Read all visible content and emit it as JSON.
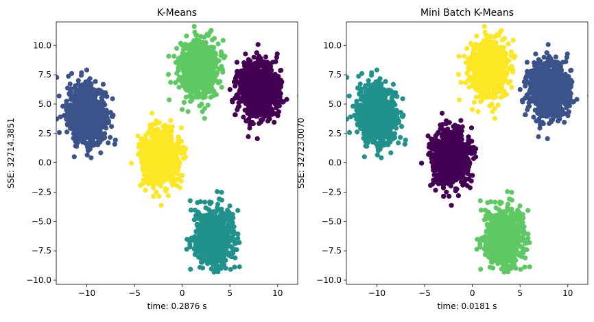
{
  "chart_data": [
    {
      "type": "scatter",
      "title": "K-Means",
      "xlabel": "time: 0.2876 s",
      "ylabel": "SSE: 32714.3851",
      "xlim": [
        -13.2,
        12.1
      ],
      "ylim": [
        -10.35,
        12.0
      ],
      "xticks": [
        -10,
        -5,
        0,
        5,
        10
      ],
      "xtick_labels": [
        "−10",
        "−5",
        "0",
        "5",
        "10"
      ],
      "yticks": [
        -10.0,
        -7.5,
        -5.0,
        -2.5,
        0.0,
        2.5,
        5.0,
        7.5,
        10.0
      ],
      "ytick_labels": [
        "−10.0",
        "−7.5",
        "−5.0",
        "−2.5",
        "0.0",
        "2.5",
        "5.0",
        "7.5",
        "10.0"
      ],
      "grid": false,
      "clusters": [
        {
          "center": [
            -10.0,
            4.1
          ],
          "spread": [
            1.0,
            1.2
          ],
          "color": "#3b528b"
        },
        {
          "center": [
            1.7,
            8.0
          ],
          "spread": [
            0.95,
            1.15
          ],
          "color": "#5ec962"
        },
        {
          "center": [
            8.0,
            6.2
          ],
          "spread": [
            1.05,
            1.2
          ],
          "color": "#440154"
        },
        {
          "center": [
            -2.3,
            0.4
          ],
          "spread": [
            0.95,
            1.2
          ],
          "color": "#fde725"
        },
        {
          "center": [
            3.2,
            -6.3
          ],
          "spread": [
            0.95,
            1.2
          ],
          "color": "#21918c"
        }
      ]
    },
    {
      "type": "scatter",
      "title": "Mini Batch K-Means",
      "xlabel": "time: 0.0181 s",
      "ylabel": "SSE: 32723.0070",
      "xlim": [
        -13.2,
        12.1
      ],
      "ylim": [
        -10.35,
        12.0
      ],
      "xticks": [
        -10,
        -5,
        0,
        5,
        10
      ],
      "xtick_labels": [
        "−10",
        "−5",
        "0",
        "5",
        "10"
      ],
      "yticks": [
        -10.0,
        -7.5,
        -5.0,
        -2.5,
        0.0,
        2.5,
        5.0,
        7.5,
        10.0
      ],
      "ytick_labels": [
        "−10.0",
        "−7.5",
        "−5.0",
        "−2.5",
        "0.0",
        "2.5",
        "5.0",
        "7.5",
        "10.0"
      ],
      "grid": false,
      "clusters": [
        {
          "center": [
            -10.0,
            4.1
          ],
          "spread": [
            1.0,
            1.2
          ],
          "color": "#21918c"
        },
        {
          "center": [
            1.7,
            8.0
          ],
          "spread": [
            0.95,
            1.15
          ],
          "color": "#fde725"
        },
        {
          "center": [
            8.0,
            6.2
          ],
          "spread": [
            1.05,
            1.2
          ],
          "color": "#3b528b"
        },
        {
          "center": [
            -2.3,
            0.4
          ],
          "spread": [
            0.95,
            1.2
          ],
          "color": "#440154"
        },
        {
          "center": [
            3.2,
            -6.3
          ],
          "spread": [
            0.95,
            1.2
          ],
          "color": "#5ec962"
        }
      ]
    }
  ]
}
